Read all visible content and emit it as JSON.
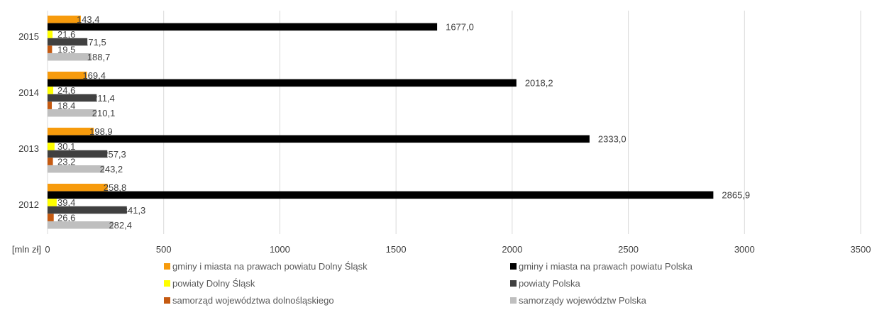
{
  "chart_data": {
    "type": "bar",
    "orientation": "horizontal",
    "categories": [
      "2015",
      "2014",
      "2013",
      "2012"
    ],
    "series": [
      {
        "name": "gminy i miasta na prawach powiatu Dolny Śląsk",
        "color": "#f79b0c",
        "values": [
          143.4,
          169.4,
          198.9,
          258.8
        ],
        "labels": [
          "143,4",
          "169,4",
          "198,9",
          "258,8"
        ]
      },
      {
        "name": "gminy i miasta na prawach powiatu Polska",
        "color": "#000000",
        "values": [
          1677.0,
          2018.2,
          2333.0,
          2865.9
        ],
        "labels": [
          "1677,0",
          "2018,2",
          "2333,0",
          "2865,9"
        ]
      },
      {
        "name": "powiaty Dolny Śląsk",
        "color": "#ffff00",
        "values": [
          21.6,
          24.6,
          30.1,
          39.4
        ],
        "labels": [
          "21,6",
          "24,6",
          "30,1",
          "39,4"
        ]
      },
      {
        "name": "powiaty Polska",
        "color": "#404040",
        "values": [
          171.5,
          211.4,
          257.3,
          341.3
        ],
        "labels": [
          "171,5",
          "211,4",
          "257,3",
          "341,3"
        ]
      },
      {
        "name": "samorząd województwa dolnośląskiego",
        "color": "#c55a11",
        "values": [
          19.5,
          18.4,
          23.2,
          26.6
        ],
        "labels": [
          "19,5",
          "18,4",
          "23,2",
          "26,6"
        ]
      },
      {
        "name": "samorządy województw Polska",
        "color": "#bfbfbf",
        "values": [
          188.7,
          210.1,
          243.2,
          282.4
        ],
        "labels": [
          "188,7",
          "210,1",
          "243,2",
          "282,4"
        ]
      }
    ],
    "xaxis": {
      "unit_label": "[mln zł]",
      "min": 0,
      "max": 3500,
      "ticks": [
        0,
        500,
        1000,
        1500,
        2000,
        2500,
        3000,
        3500
      ],
      "tick_labels": [
        "0",
        "500",
        "1000",
        "1500",
        "2000",
        "2500",
        "3000",
        "3500"
      ]
    },
    "grid": true,
    "legend_position": "bottom",
    "title": "",
    "ylabel": ""
  }
}
